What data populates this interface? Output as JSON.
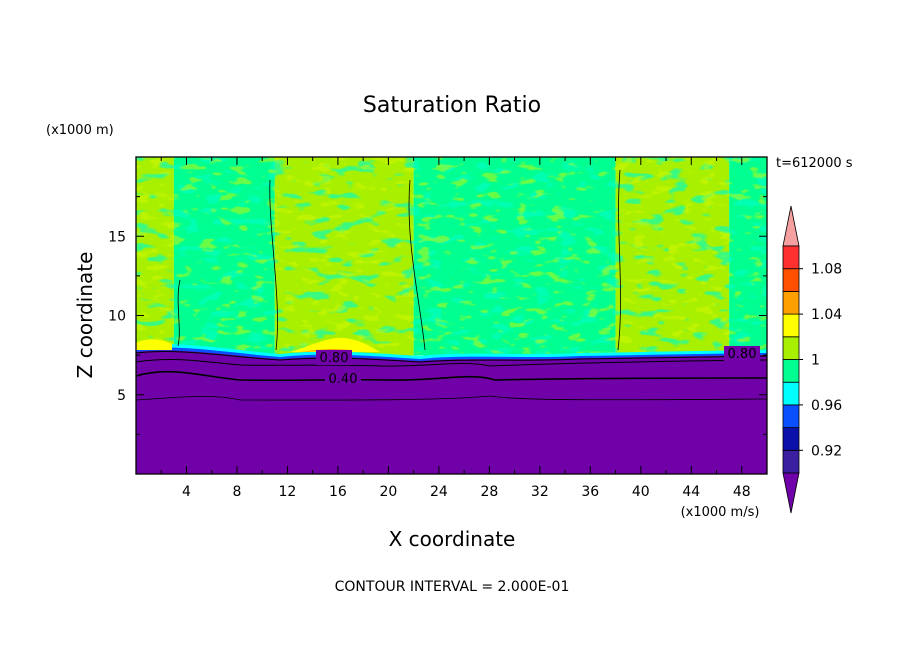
{
  "chart_data": {
    "type": "heatmap",
    "title": "Saturation Ratio",
    "xlabel": "X coordinate",
    "ylabel": "Z coordinate",
    "x_unit": "(x1000 m/s)",
    "y_unit": "(x1000 m)",
    "time_label": "t=612000 s",
    "footer": "CONTOUR INTERVAL = 2.000E-01",
    "xlim": [
      0,
      50
    ],
    "ylim": [
      0,
      20
    ],
    "x_ticks": [
      "4",
      "8",
      "12",
      "16",
      "20",
      "24",
      "28",
      "32",
      "36",
      "40",
      "44",
      "48"
    ],
    "y_ticks": [
      "5",
      "10",
      "15"
    ],
    "contour_labels": [
      "0.80",
      "0.40",
      "0.80"
    ],
    "colorbar": {
      "ticks": [
        "0.92",
        "0.96",
        "1",
        "1.04",
        "1.08"
      ],
      "levels": [
        0.9,
        0.92,
        0.94,
        0.96,
        0.98,
        1.0,
        1.02,
        1.04,
        1.06,
        1.08,
        1.1
      ],
      "colors": [
        "#7000a8",
        "#3a1fa0",
        "#0a10a8",
        "#0a50ff",
        "#00ffff",
        "#00ff90",
        "#a8f000",
        "#ffff00",
        "#ffa000",
        "#ff5000",
        "#ff3030",
        "#f4a0a0"
      ]
    },
    "regions": [
      {
        "x": [
          0,
          50
        ],
        "z": [
          0,
          7.6
        ],
        "value": "< 0.90"
      },
      {
        "x": [
          0,
          3
        ],
        "z": [
          7.6,
          20
        ],
        "value": "1.00-1.02"
      },
      {
        "x": [
          3,
          11
        ],
        "z": [
          7.6,
          20
        ],
        "value": "0.98-1.00"
      },
      {
        "x": [
          11,
          22
        ],
        "z": [
          7.6,
          20
        ],
        "value": "1.00-1.02"
      },
      {
        "x": [
          22,
          38
        ],
        "z": [
          7.6,
          20
        ],
        "value": "0.98-1.00"
      },
      {
        "x": [
          38,
          47
        ],
        "z": [
          7.6,
          20
        ],
        "value": "1.00-1.02"
      },
      {
        "x": [
          47,
          50
        ],
        "z": [
          7.6,
          20
        ],
        "value": "0.98-1.00"
      }
    ]
  }
}
